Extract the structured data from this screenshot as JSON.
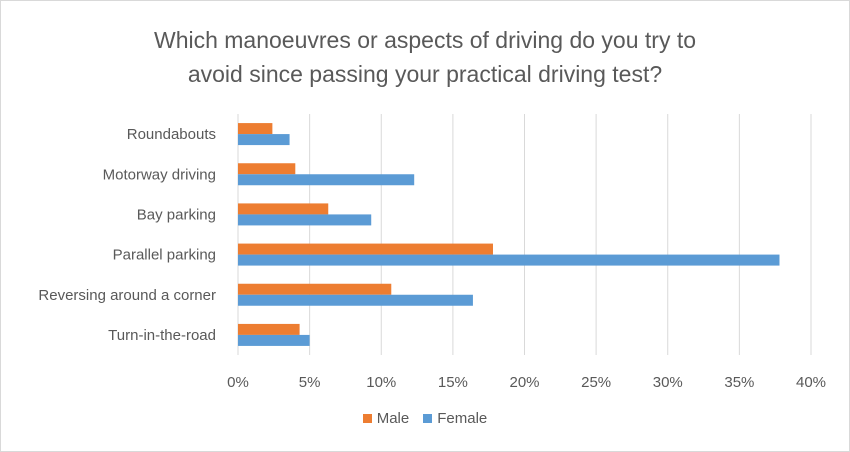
{
  "chart_data": {
    "type": "bar",
    "orientation": "horizontal",
    "title_lines": [
      "Which manoeuvres or aspects of driving do you try to",
      "avoid since passing your practical driving test?"
    ],
    "categories": [
      "Roundabouts",
      "Motorway driving",
      "Bay parking",
      "Parallel parking",
      "Reversing around a corner",
      "Turn-in-the-road"
    ],
    "series": [
      {
        "name": "Male",
        "color": "#ED7D31",
        "values": [
          2.4,
          4.0,
          6.3,
          17.8,
          10.7,
          4.3
        ]
      },
      {
        "name": "Female",
        "color": "#5B9BD5",
        "values": [
          3.6,
          12.3,
          9.3,
          37.8,
          16.4,
          5.0
        ]
      }
    ],
    "x_ticks": [
      "0%",
      "5%",
      "10%",
      "15%",
      "20%",
      "25%",
      "30%",
      "35%",
      "40%"
    ],
    "xlim": [
      0,
      40
    ],
    "xlabel": "",
    "ylabel": "",
    "grid": true,
    "legend_position": "bottom",
    "gridline_color": "#d9d9d9"
  }
}
